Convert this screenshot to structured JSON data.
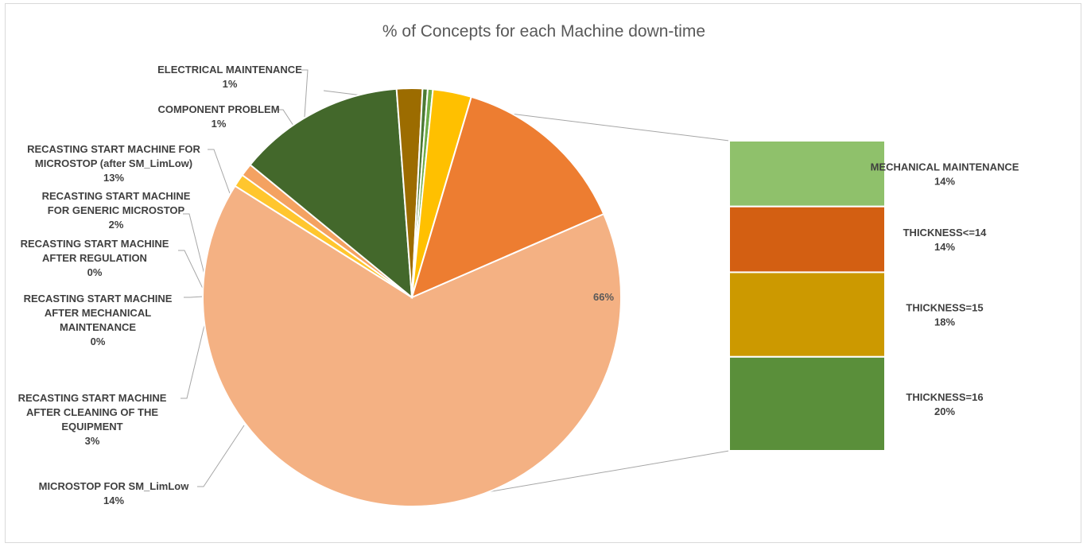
{
  "chart_data": {
    "type": "pie",
    "title": "% of Concepts for each Machine down-time",
    "pie": [
      {
        "label_lines": [
          "",
          "66%"
        ],
        "value": 66,
        "color": "#f4b183"
      },
      {
        "label_lines": [
          "ELECTRICAL MAINTENANCE",
          "1%"
        ],
        "value": 1,
        "color": "#ffc62e"
      },
      {
        "label_lines": [
          "COMPONENT PROBLEM",
          "1%"
        ],
        "value": 1,
        "color": "#f4a261"
      },
      {
        "label_lines": [
          "RECASTING START MACHINE FOR",
          "MICROSTOP  (after SM_LimLow)",
          "13%"
        ],
        "value": 13,
        "color": "#43682b"
      },
      {
        "label_lines": [
          "RECASTING START MACHINE",
          "FOR GENERIC MICROSTOP",
          "2%"
        ],
        "value": 2,
        "color": "#9c6c00"
      },
      {
        "label_lines": [
          "RECASTING START MACHINE",
          "AFTER REGULATION",
          "0%"
        ],
        "value": 0.4,
        "color": "#4c7a34"
      },
      {
        "label_lines": [
          "RECASTING START MACHINE",
          "AFTER MECHANICAL",
          "MAINTENANCE",
          "0%"
        ],
        "value": 0.4,
        "color": "#70ad47"
      },
      {
        "label_lines": [
          "RECASTING START MACHINE",
          "AFTER CLEANING OF THE",
          "EQUIPMENT",
          "3%"
        ],
        "value": 3,
        "color": "#ffc000"
      },
      {
        "label_lines": [
          "MICROSTOP FOR SM_LimLow",
          "14%"
        ],
        "value": 14,
        "color": "#ed7d31"
      }
    ],
    "bar_of_pie": [
      {
        "label_lines": [
          "MECHANICAL MAINTENANCE",
          "14%"
        ],
        "value": 14,
        "color": "#8fc16b"
      },
      {
        "label_lines": [
          "THICKNESS<=14",
          "14%"
        ],
        "value": 14,
        "color": "#d35f12"
      },
      {
        "label_lines": [
          "THICKNESS=15",
          "18%"
        ],
        "value": 18,
        "color": "#cc9900"
      },
      {
        "label_lines": [
          "THICKNESS=16",
          "20%"
        ],
        "value": 20,
        "color": "#5a8f3a"
      }
    ],
    "legend": "none"
  }
}
